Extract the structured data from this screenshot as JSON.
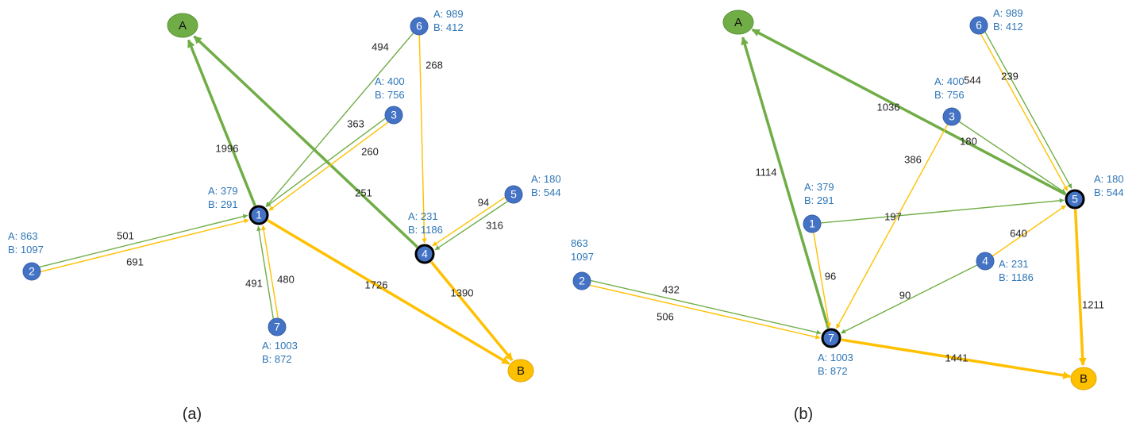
{
  "colors": {
    "green": "#70AD47",
    "gold": "#FFC000",
    "node_blue": "#4472C4",
    "info_blue": "#2E75B6",
    "terminal_a": "#70AD47",
    "terminal_b": "#FFC000"
  },
  "panels": [
    {
      "caption": "(a)",
      "terminals": [
        {
          "id": "A",
          "label": "A",
          "color": "green"
        },
        {
          "id": "B",
          "label": "B",
          "color": "gold"
        }
      ],
      "nodes": [
        {
          "id": "1",
          "label": "1",
          "hub": true,
          "info": [
            "A: 379",
            "B: 291"
          ]
        },
        {
          "id": "2",
          "label": "2",
          "hub": false,
          "info": [
            "A: 863",
            "B: 1097"
          ]
        },
        {
          "id": "3",
          "label": "3",
          "hub": false,
          "info": [
            "A: 400",
            "B: 756"
          ]
        },
        {
          "id": "4",
          "label": "4",
          "hub": true,
          "info": [
            "A: 231",
            "B: 1186"
          ]
        },
        {
          "id": "5",
          "label": "5",
          "hub": false,
          "info": [
            "A: 180",
            "B: 544"
          ]
        },
        {
          "id": "6",
          "label": "6",
          "hub": false,
          "info": [
            "A: 989",
            "B: 412"
          ]
        },
        {
          "id": "7",
          "label": "7",
          "hub": false,
          "info": [
            "A: 1003",
            "B: 872"
          ]
        }
      ],
      "edges": [
        {
          "from": "1",
          "to": "A",
          "color": "green",
          "thick": true,
          "label": "1996"
        },
        {
          "from": "4",
          "to": "A",
          "color": "green",
          "thick": true,
          "label": "251"
        },
        {
          "from": "1",
          "to": "B",
          "color": "gold",
          "thick": true,
          "label": "1726"
        },
        {
          "from": "4",
          "to": "B",
          "color": "gold",
          "thick": true,
          "label": "1390"
        },
        {
          "from": "6",
          "to": "1",
          "color": "green",
          "thick": false,
          "label": "494"
        },
        {
          "from": "6",
          "to": "4",
          "color": "gold",
          "thick": false,
          "label": "268"
        },
        {
          "from": "3",
          "to": "1",
          "color": "gold",
          "thick": false,
          "label": "363"
        },
        {
          "from": "3",
          "to": "1",
          "color": "green",
          "thick": false,
          "label": "260"
        },
        {
          "from": "2",
          "to": "1",
          "color": "green",
          "thick": false,
          "label": "501"
        },
        {
          "from": "2",
          "to": "1",
          "color": "gold",
          "thick": false,
          "label": "691"
        },
        {
          "from": "7",
          "to": "1",
          "color": "green",
          "thick": false,
          "label": "491"
        },
        {
          "from": "7",
          "to": "1",
          "color": "gold",
          "thick": false,
          "label": "480"
        },
        {
          "from": "5",
          "to": "4",
          "color": "green",
          "thick": false,
          "label": "94"
        },
        {
          "from": "5",
          "to": "4",
          "color": "gold",
          "thick": false,
          "label": "316"
        }
      ]
    },
    {
      "caption": "(b)",
      "terminals": [
        {
          "id": "A",
          "label": "A",
          "color": "green"
        },
        {
          "id": "B",
          "label": "B",
          "color": "gold"
        }
      ],
      "nodes": [
        {
          "id": "1",
          "label": "1",
          "hub": false,
          "info": [
            "A: 379",
            "B: 291"
          ]
        },
        {
          "id": "2",
          "label": "2",
          "hub": false,
          "info": [
            "863",
            "1097"
          ]
        },
        {
          "id": "3",
          "label": "3",
          "hub": false,
          "info": [
            "A: 400",
            "B: 756"
          ]
        },
        {
          "id": "4",
          "label": "4",
          "hub": false,
          "info": [
            "A: 231",
            "B: 1186"
          ]
        },
        {
          "id": "5",
          "label": "5",
          "hub": true,
          "info": [
            "A: 180",
            "B: 544"
          ]
        },
        {
          "id": "6",
          "label": "6",
          "hub": false,
          "info": [
            "A: 989",
            "B: 412"
          ]
        },
        {
          "id": "7",
          "label": "7",
          "hub": true,
          "info": [
            "A: 1003",
            "B: 872"
          ]
        }
      ],
      "edges": [
        {
          "from": "7",
          "to": "A",
          "color": "green",
          "thick": true,
          "label": "1114"
        },
        {
          "from": "5",
          "to": "A",
          "color": "green",
          "thick": true,
          "label": "1036"
        },
        {
          "from": "7",
          "to": "B",
          "color": "gold",
          "thick": true,
          "label": "1441"
        },
        {
          "from": "5",
          "to": "B",
          "color": "gold",
          "thick": true,
          "label": "1211"
        },
        {
          "from": "6",
          "to": "5",
          "color": "green",
          "thick": false,
          "label": "544"
        },
        {
          "from": "6",
          "to": "5",
          "color": "gold",
          "thick": false,
          "label": "239"
        },
        {
          "from": "3",
          "to": "5",
          "color": "green",
          "thick": false,
          "label": "180"
        },
        {
          "from": "3",
          "to": "7",
          "color": "gold",
          "thick": false,
          "label": "386"
        },
        {
          "from": "1",
          "to": "5",
          "color": "green",
          "thick": false,
          "label": "197"
        },
        {
          "from": "1",
          "to": "7",
          "color": "gold",
          "thick": false,
          "label": "96"
        },
        {
          "from": "4",
          "to": "5",
          "color": "gold",
          "thick": false,
          "label": "640"
        },
        {
          "from": "4",
          "to": "7",
          "color": "green",
          "thick": false,
          "label": "90"
        },
        {
          "from": "2",
          "to": "7",
          "color": "green",
          "thick": false,
          "label": "432"
        },
        {
          "from": "2",
          "to": "7",
          "color": "gold",
          "thick": false,
          "label": "506"
        }
      ]
    }
  ]
}
